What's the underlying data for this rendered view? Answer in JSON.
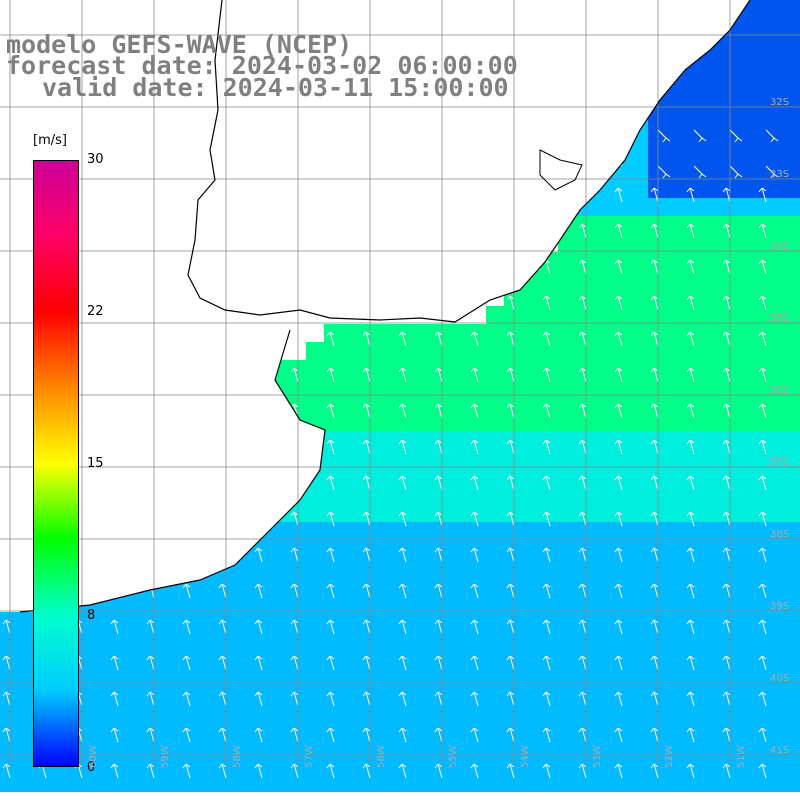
{
  "header": {
    "line1": "modelo GEFS-WAVE (NCEP)",
    "line2": "forecast date: 2024-03-02 06:00:00",
    "line3": "valid date: 2024-03-11 15:00:00"
  },
  "colorbar": {
    "unit": "[m/s]",
    "ticks": [
      "30",
      "22",
      "15",
      "8",
      "0"
    ],
    "tick_values": [
      30,
      22,
      15,
      8,
      0
    ],
    "colors": [
      "#0000ff",
      "#00ccff",
      "#00ffcc",
      "#00ff00",
      "#ffff00",
      "#ff8800",
      "#ff0000",
      "#ff0066",
      "#cc0099"
    ]
  },
  "grid": {
    "lat_labels": [
      "32S",
      "33S",
      "34S",
      "35S",
      "36S",
      "37S",
      "38S",
      "39S",
      "40S",
      "41S"
    ],
    "lon_labels": [
      "60W",
      "59W",
      "58W",
      "57W",
      "56W",
      "55W",
      "54W",
      "53W",
      "52W",
      "51W"
    ]
  },
  "colors": {
    "land": "#ffffff",
    "coast": "#000000",
    "gridline": "#888888"
  }
}
